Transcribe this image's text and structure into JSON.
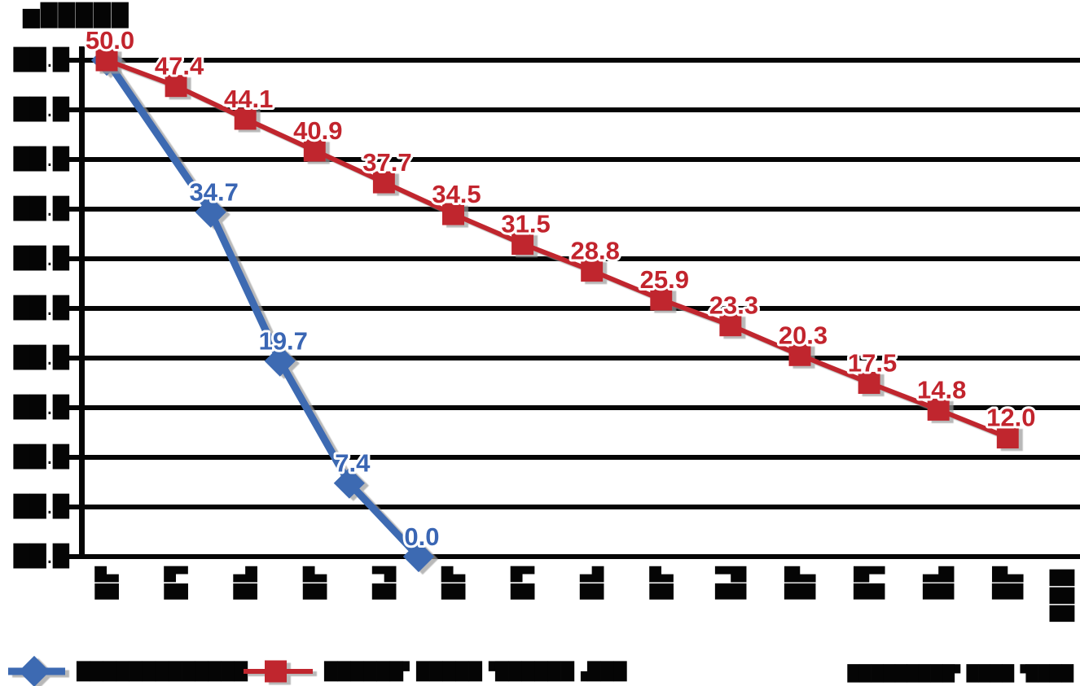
{
  "title_blob": "▆█████",
  "chart_data": {
    "type": "line",
    "title": "",
    "ylim": [
      0,
      50
    ],
    "ytick_step": 5,
    "grid": "horizontal",
    "legend_position": "bottom",
    "x_categories_count": 14,
    "series": [
      {
        "id": "blue-series",
        "legend_label_blob": "█████████████",
        "color": "#3C6AB2",
        "label_color": "#3A66B4",
        "marker": "diamond",
        "x": [
          1,
          2.5,
          3.5,
          4.5,
          5.5
        ],
        "values": [
          50.0,
          34.7,
          19.7,
          7.4,
          0.0
        ],
        "show_first_label": false
      },
      {
        "id": "red-series",
        "legend_label_blob": "██████▘█████▝██████▗███",
        "color": "#C0262E",
        "label_color": "#C2242D",
        "marker": "square",
        "x": [
          1,
          2,
          3,
          4,
          5,
          6,
          7,
          8,
          9,
          10,
          11,
          12,
          13,
          14
        ],
        "values": [
          50.0,
          47.4,
          44.1,
          40.9,
          37.7,
          34.5,
          31.5,
          28.8,
          25.9,
          23.3,
          20.3,
          17.5,
          14.8,
          12.0
        ],
        "show_first_label": true
      }
    ]
  },
  "y_axis": {
    "tick_label_blob": "██.█",
    "tick_values": [
      50,
      45,
      40,
      35,
      30,
      25,
      20,
      15,
      10,
      5,
      0
    ]
  },
  "x_axis": {
    "tick_label_blobs": [
      "▟█",
      "▙█",
      "▜█",
      "▟█",
      "▛█",
      "▟█",
      "▙█",
      "▜█",
      "▟█",
      "▛█",
      "▟█",
      "▙█",
      "▜█",
      "▟█"
    ],
    "unit_label_blob": "███"
  },
  "footnote_blob": "█████████▘████▝████",
  "colors": {
    "grid": "#050505",
    "axis": "#050505",
    "background": "#ffffff",
    "shadow": "#9a9a9a"
  }
}
